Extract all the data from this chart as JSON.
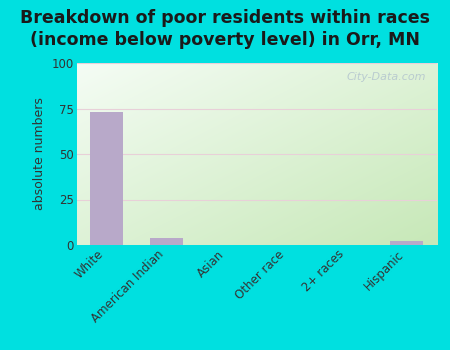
{
  "categories": [
    "White",
    "American Indian",
    "Asian",
    "Other race",
    "2+ races",
    "Hispanic"
  ],
  "values": [
    73,
    4,
    0,
    0,
    0,
    2
  ],
  "bar_color": "#b8a9c9",
  "background_color": "#00e0e0",
  "plot_bg_topleft": "#f5f8f5",
  "plot_bg_bottomright": "#c8e8b8",
  "title_line1": "Breakdown of poor residents within races",
  "title_line2": "(income below poverty level) in Orr, MN",
  "ylabel": "absolute numbers",
  "ylim": [
    0,
    100
  ],
  "yticks": [
    0,
    25,
    50,
    75,
    100
  ],
  "watermark": "City-Data.com",
  "title_fontsize": 12.5,
  "ylabel_fontsize": 9,
  "tick_fontsize": 8.5,
  "grid_color": "#e8d0d8",
  "title_color": "#1a1a1a"
}
